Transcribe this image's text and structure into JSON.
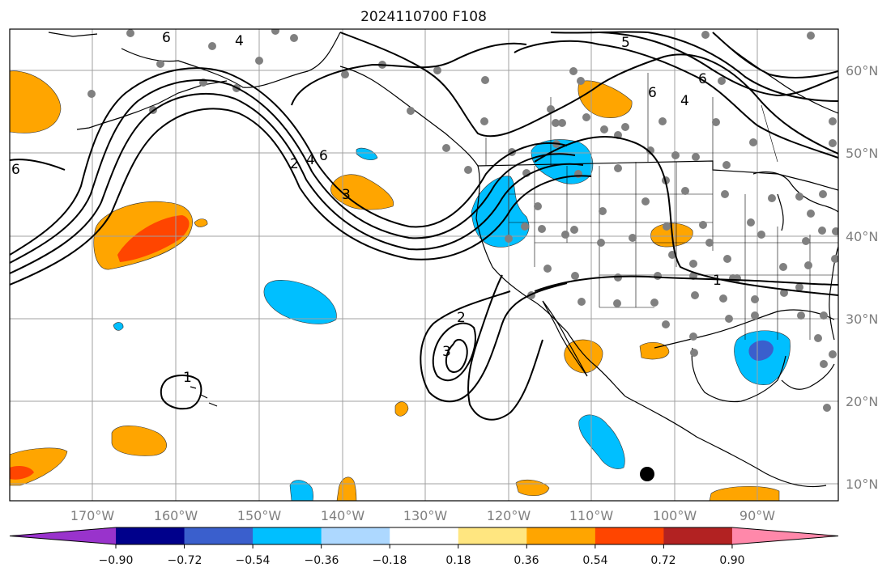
{
  "title": "2024110700 F108",
  "lon_ticks": [
    "170°W",
    "160°W",
    "150°W",
    "140°W",
    "130°W",
    "120°W",
    "110°W",
    "100°W",
    "90°W"
  ],
  "lat_ticks": [
    "60°N",
    "50°N",
    "40°N",
    "30°N",
    "20°N",
    "10°N"
  ],
  "colorbar": {
    "colors": [
      "#9933cc",
      "#00008b",
      "#3a5fcd",
      "#00bfff",
      "#add8ff",
      "#ffffff",
      "#ffe680",
      "#ffa500",
      "#ff4500",
      "#b22222",
      "#ff88aa"
    ],
    "tick_labels": [
      "−0.90",
      "−0.72",
      "−0.54",
      "−0.36",
      "−0.18",
      "0.18",
      "0.36",
      "0.54",
      "0.72",
      "0.90"
    ]
  },
  "contour_labels": [
    "6",
    "4",
    "5",
    "6",
    "4",
    "6",
    "2",
    "4",
    "6",
    "3",
    "6",
    "1",
    "2",
    "3",
    "1"
  ],
  "colors": {
    "station": "#808080",
    "coast": "#000000",
    "grid": "#a0a0a0"
  }
}
